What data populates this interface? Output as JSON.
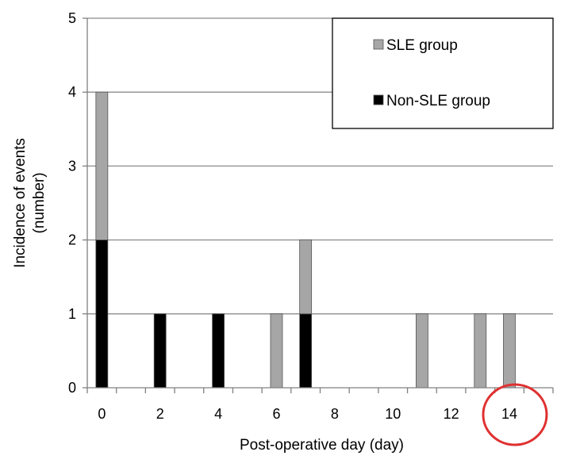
{
  "chart_data": {
    "type": "bar",
    "stacked": true,
    "title": "",
    "xlabel": "Post-operative day (day)",
    "ylabel_lines": [
      "Incidence of events",
      "(number)"
    ],
    "ylim": [
      0,
      5
    ],
    "xlim": [
      -0.5,
      15.5
    ],
    "y_ticks": [
      0,
      1,
      2,
      3,
      4,
      5
    ],
    "x_tick_labels": [
      {
        "x": 0,
        "label": "0"
      },
      {
        "x": 2,
        "label": "2"
      },
      {
        "x": 4,
        "label": "4"
      },
      {
        "x": 6,
        "label": "6"
      },
      {
        "x": 8,
        "label": "8"
      },
      {
        "x": 10,
        "label": "10"
      },
      {
        "x": 12,
        "label": "12"
      },
      {
        "x": 14,
        "label": "14"
      }
    ],
    "grid": true,
    "legend_position": "top-right",
    "series": [
      {
        "name": "Non-SLE group",
        "color": "#000000",
        "points": [
          {
            "x": 0,
            "y": 2
          },
          {
            "x": 2,
            "y": 1
          },
          {
            "x": 4,
            "y": 1
          },
          {
            "x": 7,
            "y": 1
          }
        ]
      },
      {
        "name": "SLE group",
        "color": "#a6a6a6",
        "points": [
          {
            "x": 0,
            "y": 2
          },
          {
            "x": 6,
            "y": 1
          },
          {
            "x": 7,
            "y": 1
          },
          {
            "x": 11,
            "y": 1
          },
          {
            "x": 13,
            "y": 1
          },
          {
            "x": 14,
            "y": 1
          }
        ]
      }
    ],
    "annotation": {
      "type": "circle",
      "color": "#e03030",
      "around_tick": "14"
    }
  }
}
